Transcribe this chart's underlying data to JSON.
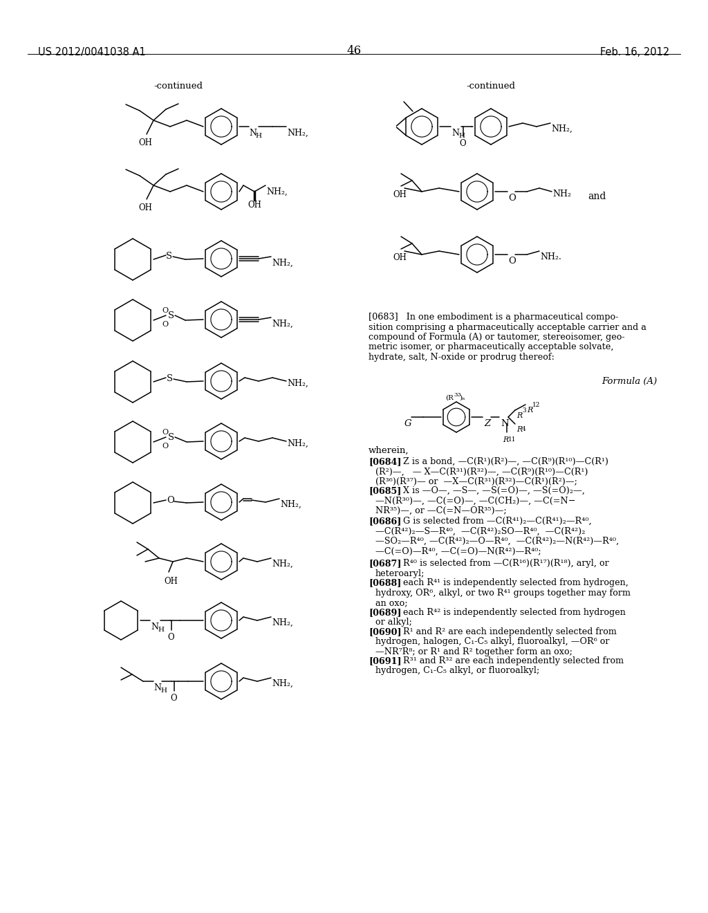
{
  "figsize": [
    10.24,
    13.2
  ],
  "dpi": 100,
  "bg": "#ffffff",
  "header_left": "US 2012/0041038 A1",
  "header_center": "46",
  "header_right": "Feb. 16, 2012",
  "continued": "-continued",
  "para683": "[0683]   In one embodiment is a pharmaceutical compo-\nsition comprising a pharmaceutically acceptable carrier and a\ncompound of Formula (A) or tautomer, stereoisomer, geo-\nmetric isomer, or pharmaceutically acceptable solvate,\nhydrate, salt, N-oxide or prodrug thereof:",
  "formula_label": "Formula (A)",
  "para684_bold": "[0684]",
  "para684_rest": "   Z is a bond, —C(R¹)(R²)—,\n—C(R⁹)(R¹⁰)—C(R¹)(R²)—,   — X—C(R³¹)(R³²)—,\n—C(R⁹)(R¹⁰)—C(R¹)(R³⁶)(R³⁷)— or  —X—C(R³¹)(R³²)—C(R¹)(R²)—;",
  "para685_bold": "[0685]",
  "para685_rest": "   X is —O—, —S—, —S(=O)—, —S(=O)₂—,\n—N(R³⁰)—, —C(=O)—, —C(CH₂)—, —C(=N−\nNR³⁵)—, or —C(=N—OR³⁵)—;",
  "para686_bold": "[0686]",
  "para686_rest": "   G is selected from —C(R⁴¹)₂—C(R⁴¹)₂—R⁴⁰,\n—C(R⁴²)₂—S—R⁴⁰,  —C(R⁴²)₂SO—R⁴⁰,  —C(R⁴²)₂\n—SO₂—R⁴⁰, —C(R⁴²)₂—O—R⁴⁰,  —C(R⁴²)₂—N(R⁴²)—R⁴⁰;",
  "para687_bold": "[0687]",
  "para687_rest": "   R⁴⁰ is selected from —C(R¹⁶)(R¹⁷)(R¹⁸), aryl, or\nheteroaryl;",
  "para688_bold": "[0688]",
  "para688_rest": "   each R⁴¹ is independently selected from hydrogen,\nhydroxy, OR⁶, alkyl, or two R⁴¹ groups together may form\nan oxo;",
  "para689_bold": "[0689]",
  "para689_rest": "   each R⁴² is independently selected from hydrogen\nor alkyl;",
  "para690_bold": "[0690]",
  "para690_rest": "   R¹ and R² are each independently selected from\nhydrogen, halogen, C₁-C₅ alkyl, fluoroalkyl, —OR⁶ or\n—NR⁷R⁸; or R¹ and R² together form an oxo;",
  "para691_bold": "[0691]",
  "para691_rest": "   R³¹ and R³² are each independently selected from\nhydrogen, C₁-C₅ alkyl, or fluoroalkyl;"
}
